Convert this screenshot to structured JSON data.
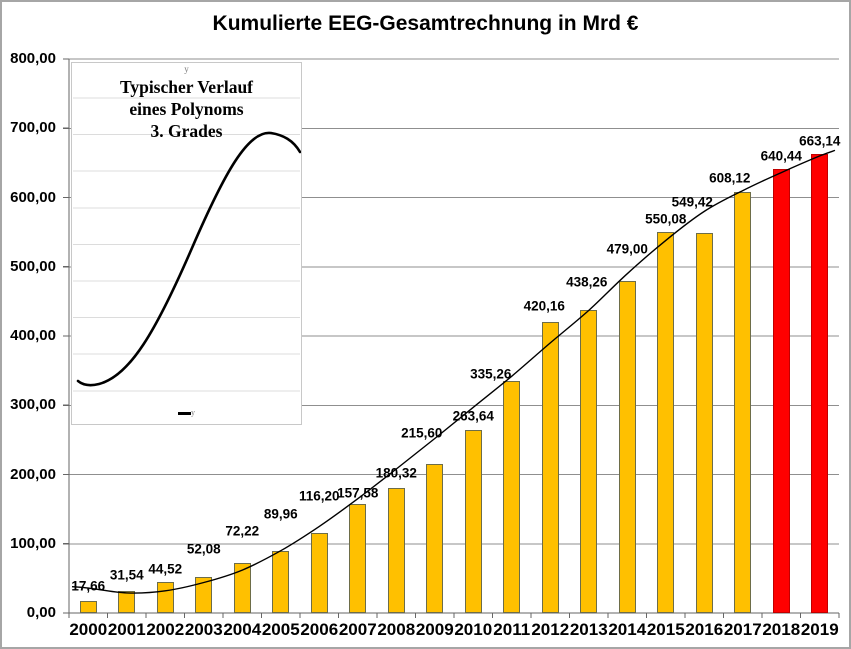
{
  "chart_data": {
    "type": "bar",
    "title": "Kumulierte EEG-Gesamtrechnung in Mrd €",
    "categories": [
      "2000",
      "2001",
      "2002",
      "2003",
      "2004",
      "2005",
      "2006",
      "2007",
      "2008",
      "2009",
      "2010",
      "2011",
      "2012",
      "2013",
      "2014",
      "2015",
      "2016",
      "2017",
      "2018",
      "2019"
    ],
    "values": [
      17.66,
      31.54,
      44.52,
      52.08,
      72.22,
      89.96,
      116.2,
      157.58,
      180.32,
      215.6,
      263.64,
      335.26,
      420.16,
      438.26,
      479.0,
      550.08,
      549.42,
      608.12,
      640.44,
      663.14
    ],
    "value_labels": [
      "17,66",
      "31,54",
      "44,52",
      "52,08",
      "72,22",
      "89,96",
      "116,20",
      "157,58",
      "180,32",
      "215,60",
      "263,64",
      "335,26",
      "420,16",
      "438,26",
      "479,00",
      "550,08",
      "549,42",
      "608,12",
      "640,44",
      "663,14"
    ],
    "bar_color_default": "#FFC000",
    "bar_color_highlight": "#FF0000",
    "highlight_categories": [
      "2018",
      "2019"
    ],
    "xlabel": "",
    "ylabel": "",
    "ylim": [
      0,
      800
    ],
    "ytick_step": 100,
    "ytick_labels": [
      "800,00",
      "700,00",
      "600,00",
      "500,00",
      "400,00",
      "300,00",
      "200,00",
      "100,00",
      "0,00"
    ],
    "grid": true,
    "legend_position": "none",
    "trendline": {
      "type": "polynomial_3rd_degree",
      "estimated_values_by_year": [
        36,
        29,
        32,
        44,
        62,
        90,
        125,
        165,
        208,
        252,
        297,
        342,
        390,
        437,
        490,
        538,
        580,
        610,
        636,
        660
      ],
      "estimated_end_value": 668
    }
  },
  "inset": {
    "title_line1": "Typischer Verlauf",
    "title_line2": "eines Polynoms",
    "title_line3": "3. Grades",
    "y_axis_label": "y",
    "legend_label": "y"
  },
  "colors": {
    "bar_gold": "#FFC000",
    "bar_gold_border": "#6d6d49",
    "bar_red": "#FF0000",
    "bar_red_border": "#c00000",
    "gridline": "#8f8f8f",
    "axis": "#666666",
    "inset_gridline": "#dcdcdc",
    "text": "#000000"
  }
}
